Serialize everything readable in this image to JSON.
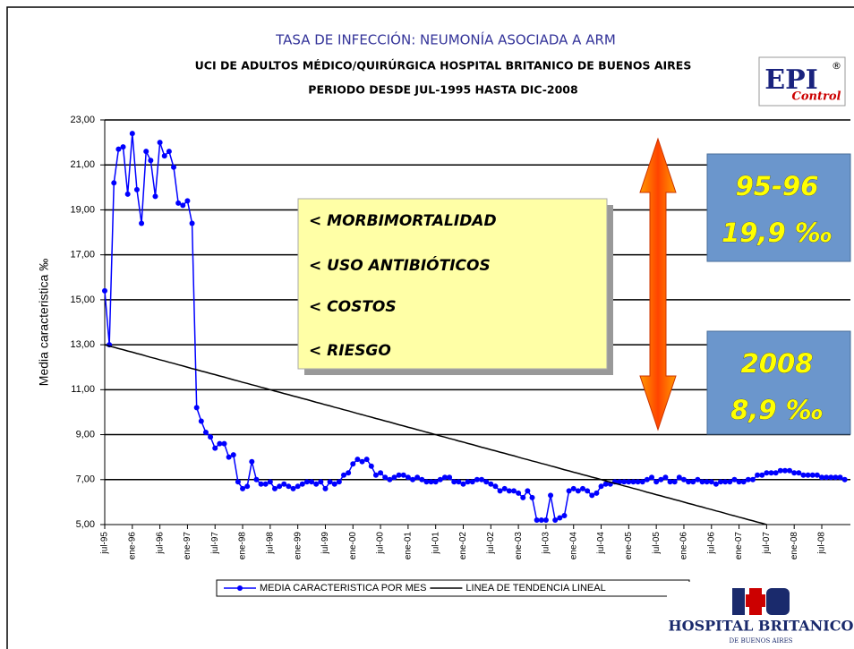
{
  "chart_data": {
    "type": "line",
    "title": "TASA DE INFECCIÓN: NEUMONÍA ASOCIADA A ARM",
    "subtitle": [
      "UCI DE ADULTOS MÉDICO/QUIRÚRGICA HOSPITAL BRITANICO DE BUENOS AIRES",
      "PERIODO DESDE JUL-1995 HASTA DIC-2008"
    ],
    "y_label": "Media caracteristica ‰",
    "ylim": [
      5,
      23
    ],
    "yticks": [
      {
        "value": 5,
        "label": "5,00"
      },
      {
        "value": 7,
        "label": "7,00"
      },
      {
        "value": 9,
        "label": "9,00"
      },
      {
        "value": 11,
        "label": "11,00"
      },
      {
        "value": 13,
        "label": "13,00"
      },
      {
        "value": 15,
        "label": "15,00"
      },
      {
        "value": 17,
        "label": "17,00"
      },
      {
        "value": 19,
        "label": "19,00"
      },
      {
        "value": 21,
        "label": "21,00"
      },
      {
        "value": 23,
        "label": "23,00"
      }
    ],
    "grid": true,
    "categories": [
      "jul-95",
      null,
      null,
      null,
      null,
      null,
      "ene-96",
      null,
      null,
      null,
      null,
      null,
      "jul-96",
      null,
      null,
      null,
      null,
      null,
      "ene-97",
      null,
      null,
      null,
      null,
      null,
      "jul-97",
      null,
      null,
      null,
      null,
      null,
      "ene-98",
      null,
      null,
      null,
      null,
      null,
      "jul-98",
      null,
      null,
      null,
      null,
      null,
      "ene-99",
      null,
      null,
      null,
      null,
      null,
      "jul-99",
      null,
      null,
      null,
      null,
      null,
      "ene-00",
      null,
      null,
      null,
      null,
      null,
      "jul-00",
      null,
      null,
      null,
      null,
      null,
      "ene-01",
      null,
      null,
      null,
      null,
      null,
      "jul-01",
      null,
      null,
      null,
      null,
      null,
      "ene-02",
      null,
      null,
      null,
      null,
      null,
      "jul-02",
      null,
      null,
      null,
      null,
      null,
      "ene-03",
      null,
      null,
      null,
      null,
      null,
      "jul-03",
      null,
      null,
      null,
      null,
      null,
      "ene-04",
      null,
      null,
      null,
      null,
      null,
      "jul-04",
      null,
      null,
      null,
      null,
      null,
      "ene-05",
      null,
      null,
      null,
      null,
      null,
      "jul-05",
      null,
      null,
      null,
      null,
      null,
      "ene-06",
      null,
      null,
      null,
      null,
      null,
      "jul-06",
      null,
      null,
      null,
      null,
      null,
      "ene-07",
      null,
      null,
      null,
      null,
      null,
      "jul-07",
      null,
      null,
      null,
      null,
      null,
      "ene-08",
      null,
      null,
      null,
      null,
      null,
      "jul-08",
      null,
      null,
      null,
      null,
      null
    ],
    "series": [
      {
        "name": "MEDIA CARACTERISTICA POR MES",
        "color": "#0000ff",
        "markers": true,
        "values": [
          15.4,
          13.0,
          20.2,
          21.7,
          21.8,
          19.7,
          22.4,
          19.9,
          18.4,
          21.6,
          21.2,
          19.6,
          22.0,
          21.4,
          21.6,
          20.9,
          19.3,
          19.2,
          19.4,
          18.4,
          10.2,
          9.6,
          9.1,
          8.9,
          8.4,
          8.6,
          8.6,
          8.0,
          8.1,
          6.9,
          6.6,
          6.7,
          7.8,
          7.0,
          6.8,
          6.8,
          6.9,
          6.6,
          6.7,
          6.8,
          6.7,
          6.6,
          6.7,
          6.8,
          6.9,
          6.9,
          6.8,
          6.9,
          6.6,
          6.9,
          6.8,
          6.9,
          7.2,
          7.3,
          7.7,
          7.9,
          7.8,
          7.9,
          7.6,
          7.2,
          7.3,
          7.1,
          7.0,
          7.1,
          7.2,
          7.2,
          7.1,
          7.0,
          7.1,
          7.0,
          6.9,
          6.9,
          6.9,
          7.0,
          7.1,
          7.1,
          6.9,
          6.9,
          6.8,
          6.9,
          6.9,
          7.0,
          7.0,
          6.9,
          6.8,
          6.7,
          6.5,
          6.6,
          6.5,
          6.5,
          6.4,
          6.2,
          6.5,
          6.2,
          5.2,
          5.2,
          5.2,
          6.3,
          5.2,
          5.3,
          5.4,
          6.5,
          6.6,
          6.5,
          6.6,
          6.5,
          6.3,
          6.4,
          6.7,
          6.8,
          6.8,
          6.9,
          6.9,
          6.9,
          6.9,
          6.9,
          6.9,
          6.9,
          7.0,
          7.1,
          6.9,
          7.0,
          7.1,
          6.9,
          6.9,
          7.1,
          7.0,
          6.9,
          6.9,
          7.0,
          6.9,
          6.9,
          6.9,
          6.8,
          6.9,
          6.9,
          6.9,
          7.0,
          6.9,
          6.9,
          7.0,
          7.0,
          7.2,
          7.2,
          7.3,
          7.3,
          7.3,
          7.4,
          7.4,
          7.4,
          7.3,
          7.3,
          7.2,
          7.2,
          7.2,
          7.2,
          7.1,
          7.1,
          7.1,
          7.1,
          7.1,
          7.0
        ]
      },
      {
        "name": "LINEA DE TENDENCIA LINEAL",
        "color": "#000000",
        "markers": false,
        "values": [
          13.0,
          12.94,
          12.89,
          12.83,
          12.78,
          12.72,
          12.67,
          12.61,
          12.56,
          12.5,
          12.44,
          12.39,
          12.33,
          12.28,
          12.22,
          12.17,
          12.11,
          12.06,
          12.0,
          11.94,
          11.89,
          11.83,
          11.78,
          11.72,
          11.67,
          11.61,
          11.56,
          11.5,
          11.44,
          11.39,
          11.33,
          11.28,
          11.22,
          11.17,
          11.11,
          11.06,
          11.0,
          10.94,
          10.89,
          10.83,
          10.78,
          10.72,
          10.67,
          10.61,
          10.56,
          10.5,
          10.44,
          10.39,
          10.33,
          10.28,
          10.22,
          10.17,
          10.11,
          10.06,
          10.0,
          9.94,
          9.89,
          9.83,
          9.78,
          9.72,
          9.67,
          9.61,
          9.56,
          9.5,
          9.44,
          9.39,
          9.33,
          9.28,
          9.22,
          9.17,
          9.11,
          9.06,
          9.0,
          8.94,
          8.89,
          8.83,
          8.78,
          8.72,
          8.67,
          8.61,
          8.56,
          8.5,
          8.44,
          8.39,
          8.33,
          8.28,
          8.22,
          8.17,
          8.11,
          8.06,
          8.0,
          7.94,
          7.89,
          7.83,
          7.78,
          7.72,
          7.67,
          7.61,
          7.56,
          7.5,
          7.44,
          7.39,
          7.33,
          7.28,
          7.22,
          7.17,
          7.11,
          7.06,
          7.0,
          6.94,
          6.89,
          6.83,
          6.78,
          6.72,
          6.67,
          6.61,
          6.56,
          6.5,
          6.44,
          6.39,
          6.33,
          6.28,
          6.22,
          6.17,
          6.11,
          6.06,
          6.0,
          5.94,
          5.89,
          5.83,
          5.78,
          5.72,
          5.67,
          5.61,
          5.56,
          5.5,
          5.44,
          5.39,
          5.33,
          5.28,
          5.22,
          5.17,
          5.11,
          5.06,
          5.0,
          null,
          null,
          null,
          null,
          null,
          null,
          null,
          null,
          null,
          null,
          null,
          null,
          null,
          null,
          null,
          null,
          null
        ]
      }
    ],
    "annotations": {
      "reasons": [
        "< MORBIMORTALIDAD",
        "< USO ANTIBIÓTICOS",
        "< COSTOS",
        "< RIESGO"
      ],
      "period1": [
        "95-96",
        "19,9 ‰"
      ],
      "period2": [
        "2008",
        "8,9 ‰"
      ]
    }
  },
  "logos": {
    "epi": [
      "EPI",
      "®",
      "Control"
    ],
    "hospital": [
      "HOSPITAL BRITANICO",
      "DE BUENOS AIRES"
    ]
  }
}
